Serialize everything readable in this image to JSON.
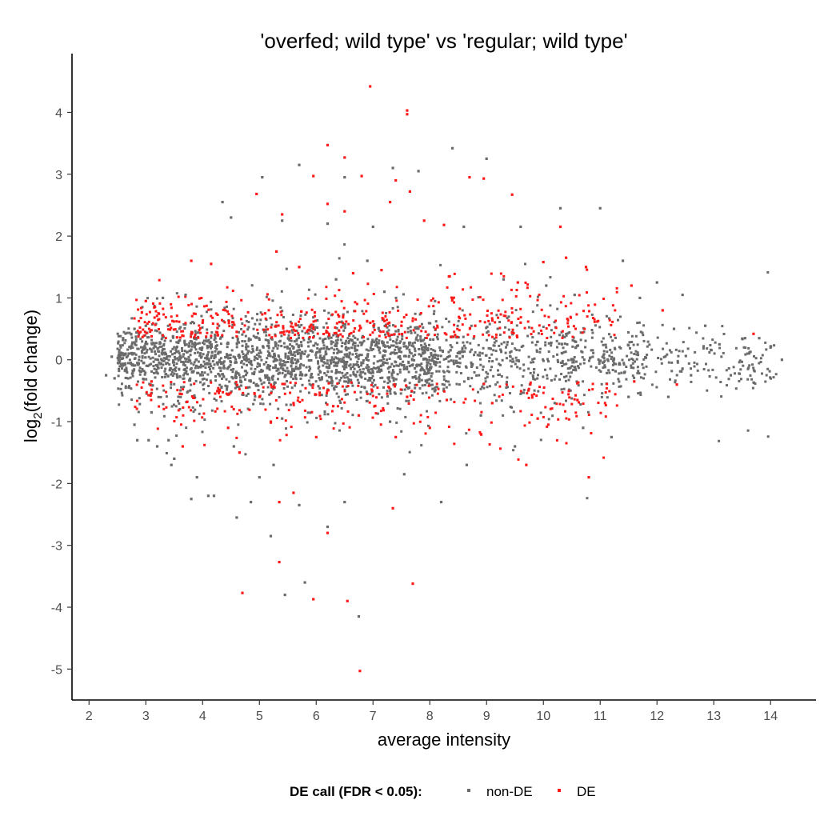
{
  "chart_data": {
    "type": "scatter",
    "title": "'overfed; wild type' vs 'regular; wild type'",
    "xlabel": "average intensity",
    "ylabel_main": "log",
    "ylabel_sub": "2",
    "ylabel_rest": "(fold change)",
    "xlim": [
      1.7,
      14.8
    ],
    "ylim": [
      -5.5,
      4.95
    ],
    "x_ticks": [
      "2",
      "3",
      "4",
      "5",
      "6",
      "7",
      "8",
      "9",
      "10",
      "11",
      "12",
      "13",
      "14"
    ],
    "y_ticks": [
      "-5",
      "-4",
      "-3",
      "-2",
      "-1",
      "0",
      "1",
      "2",
      "3",
      "4"
    ],
    "legend": {
      "title": "DE call (FDR < 0.05):",
      "position": "bottom",
      "entries": [
        "non-DE",
        "DE"
      ]
    },
    "colors": {
      "non_de": "#6b6b6b",
      "de": "#ff1a1a",
      "axis": "#000000"
    },
    "series": [
      {
        "name": "non-DE",
        "points": [
          [
            2.3,
            -0.25
          ],
          [
            2.4,
            0.05
          ],
          [
            2.45,
            -0.3
          ],
          [
            2.6,
            0.35
          ],
          [
            2.7,
            -0.45
          ],
          [
            2.8,
            -1.05
          ],
          [
            2.85,
            -1.3
          ],
          [
            3.0,
            0.55
          ],
          [
            3.05,
            -1.3
          ],
          [
            3.2,
            -1.4
          ],
          [
            3.3,
            1.0
          ],
          [
            3.4,
            -1.3
          ],
          [
            3.45,
            -1.7
          ],
          [
            3.5,
            -1.6
          ],
          [
            3.8,
            -2.25
          ],
          [
            3.7,
            1.05
          ],
          [
            3.9,
            -1.9
          ],
          [
            4.1,
            -2.2
          ],
          [
            4.2,
            -2.2
          ],
          [
            4.35,
            2.55
          ],
          [
            4.5,
            2.3
          ],
          [
            4.55,
            -1.4
          ],
          [
            4.6,
            -2.55
          ],
          [
            4.85,
            -2.3
          ],
          [
            5.0,
            -1.9
          ],
          [
            5.05,
            2.95
          ],
          [
            5.2,
            -2.85
          ],
          [
            5.4,
            2.25
          ],
          [
            5.45,
            -3.8
          ],
          [
            5.7,
            -2.35
          ],
          [
            5.7,
            3.15
          ],
          [
            5.8,
            -3.6
          ],
          [
            6.2,
            2.2
          ],
          [
            6.2,
            -2.7
          ],
          [
            6.35,
            1.3
          ],
          [
            6.5,
            2.95
          ],
          [
            6.5,
            -2.3
          ],
          [
            6.9,
            1.6
          ],
          [
            7.0,
            2.15
          ],
          [
            7.2,
            1.1
          ],
          [
            7.35,
            3.1
          ],
          [
            7.55,
            -1.85
          ],
          [
            7.8,
            3.05
          ],
          [
            8.4,
            3.42
          ],
          [
            8.2,
            -2.3
          ],
          [
            8.6,
            2.15
          ],
          [
            8.65,
            -1.7
          ],
          [
            9.0,
            3.25
          ],
          [
            9.3,
            1.3
          ],
          [
            9.5,
            -1.4
          ],
          [
            9.6,
            2.15
          ],
          [
            10.05,
            1.2
          ],
          [
            10.3,
            2.45
          ],
          [
            10.55,
            1.05
          ],
          [
            10.7,
            -1.1
          ],
          [
            11.0,
            2.45
          ],
          [
            11.2,
            -1.25
          ],
          [
            11.4,
            1.6
          ],
          [
            11.7,
            1.0
          ],
          [
            12.0,
            1.25
          ],
          [
            12.3,
            0.5
          ],
          [
            12.45,
            1.05
          ],
          [
            12.6,
            -0.25
          ],
          [
            12.85,
            0.55
          ],
          [
            13.1,
            0.25
          ],
          [
            13.3,
            -0.25
          ],
          [
            13.55,
            0.35
          ],
          [
            13.8,
            0.35
          ],
          [
            14.0,
            0.2
          ],
          [
            14.2,
            0.0
          ],
          [
            6.75,
            -4.15
          ],
          [
            5.25,
            -1.7
          ],
          [
            5.4,
            -0.95
          ],
          [
            7.3,
            -1.0
          ],
          [
            8.9,
            -0.9
          ],
          [
            10.2,
            -0.7
          ],
          [
            11.5,
            -0.6
          ],
          [
            12.2,
            -0.6
          ],
          [
            2.8,
            0.5
          ],
          [
            3.1,
            -0.85
          ]
        ]
      },
      {
        "name": "DE",
        "points": [
          [
            6.95,
            4.42
          ],
          [
            7.6,
            4.03
          ],
          [
            7.6,
            3.97
          ],
          [
            6.2,
            3.47
          ],
          [
            6.5,
            3.27
          ],
          [
            5.95,
            2.97
          ],
          [
            6.8,
            2.97
          ],
          [
            8.7,
            2.95
          ],
          [
            8.95,
            2.93
          ],
          [
            7.4,
            2.9
          ],
          [
            4.95,
            2.68
          ],
          [
            7.65,
            2.72
          ],
          [
            7.3,
            2.55
          ],
          [
            6.2,
            2.52
          ],
          [
            9.45,
            2.67
          ],
          [
            5.4,
            2.35
          ],
          [
            6.5,
            2.4
          ],
          [
            8.25,
            2.18
          ],
          [
            7.9,
            2.25
          ],
          [
            10.3,
            2.15
          ],
          [
            3.8,
            1.6
          ],
          [
            4.15,
            1.55
          ],
          [
            5.3,
            1.75
          ],
          [
            5.7,
            1.5
          ],
          [
            6.65,
            1.4
          ],
          [
            7.15,
            1.45
          ],
          [
            8.35,
            1.35
          ],
          [
            9.55,
            1.25
          ],
          [
            10.0,
            1.58
          ],
          [
            10.4,
            1.65
          ],
          [
            10.75,
            1.5
          ],
          [
            11.55,
            1.2
          ],
          [
            12.1,
            0.8
          ],
          [
            13.7,
            0.42
          ],
          [
            3.0,
            0.95
          ],
          [
            4.0,
            0.6
          ],
          [
            4.6,
            0.45
          ],
          [
            5.1,
            0.75
          ],
          [
            5.9,
            0.55
          ],
          [
            6.4,
            0.7
          ],
          [
            7.0,
            0.62
          ],
          [
            7.5,
            0.55
          ],
          [
            8.1,
            0.5
          ],
          [
            8.8,
            0.55
          ],
          [
            9.6,
            0.6
          ],
          [
            3.1,
            -0.35
          ],
          [
            3.6,
            -0.55
          ],
          [
            4.3,
            -0.5
          ],
          [
            5.0,
            -0.6
          ],
          [
            5.6,
            -0.7
          ],
          [
            6.3,
            -0.75
          ],
          [
            6.9,
            -0.55
          ],
          [
            7.6,
            -0.6
          ],
          [
            8.3,
            -0.65
          ],
          [
            9.1,
            -0.7
          ],
          [
            10.6,
            -0.65
          ],
          [
            11.6,
            -0.35
          ],
          [
            12.35,
            -0.4
          ],
          [
            3.65,
            -1.4
          ],
          [
            4.45,
            -1.1
          ],
          [
            5.2,
            -1.0
          ],
          [
            6.0,
            -1.25
          ],
          [
            6.75,
            -0.9
          ],
          [
            7.4,
            -1.25
          ],
          [
            8.0,
            -1.1
          ],
          [
            9.7,
            -1.7
          ],
          [
            10.8,
            -1.9
          ],
          [
            4.65,
            -1.5
          ],
          [
            5.6,
            -2.15
          ],
          [
            5.35,
            -2.3
          ],
          [
            7.35,
            -2.4
          ],
          [
            6.2,
            -2.8
          ],
          [
            5.35,
            -3.27
          ],
          [
            4.7,
            -3.77
          ],
          [
            5.95,
            -3.87
          ],
          [
            6.55,
            -3.9
          ],
          [
            7.7,
            -3.62
          ],
          [
            6.77,
            -5.03
          ],
          [
            8.9,
            -1.2
          ],
          [
            9.9,
            -0.95
          ]
        ]
      }
    ]
  }
}
